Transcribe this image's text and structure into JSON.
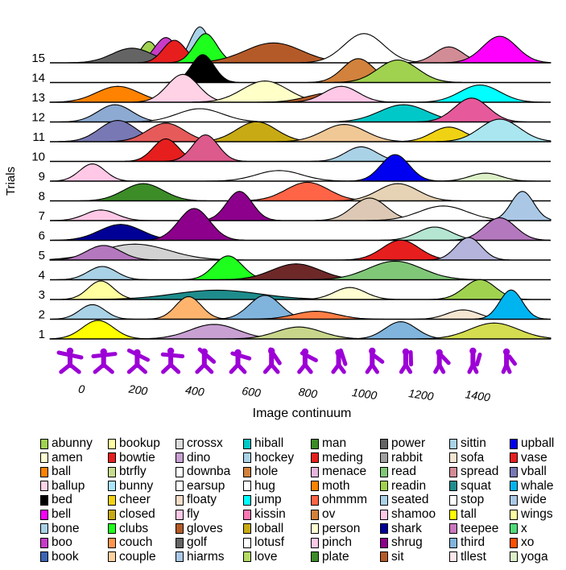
{
  "chart_data": {
    "type": "ridgeline",
    "ylabel": "Trials",
    "xlabel": "Image continuum",
    "xlim": [
      -110,
      1660
    ],
    "x_ticks": [
      0,
      200,
      400,
      600,
      800,
      1000,
      1200,
      1400
    ],
    "x_tick_labels": [
      "0",
      "200",
      "400",
      "600",
      "800",
      "1000",
      "1200",
      "1400"
    ],
    "rows": [
      "1",
      "2",
      "3",
      "4",
      "5",
      "6",
      "7",
      "8",
      "9",
      "10",
      "11",
      "12",
      "13",
      "14",
      "15"
    ],
    "ridges": [
      {
        "name": "tall",
        "color": "#ffff00",
        "row": 1,
        "x": 60,
        "height": 0.7,
        "width": 55
      },
      {
        "name": "dino",
        "color": "#c8a0d2",
        "row": 1,
        "x": 470,
        "height": 0.55,
        "width": 85
      },
      {
        "name": "love",
        "color": "#c8d68c",
        "row": 1,
        "x": 770,
        "height": 0.45,
        "width": 80
      },
      {
        "name": "seated",
        "color": "#80b4dc",
        "row": 1,
        "x": 1130,
        "height": 0.65,
        "width": 55
      },
      {
        "name": "sofa",
        "color": "#d4dc50",
        "row": 1,
        "x": 1460,
        "height": 0.6,
        "width": 85
      },
      {
        "name": "bone",
        "color": "#aad2e6",
        "row": 2,
        "x": 40,
        "height": 0.55,
        "width": 45
      },
      {
        "name": "couple",
        "color": "#ffb46e",
        "row": 2,
        "x": 380,
        "height": 0.85,
        "width": 45
      },
      {
        "name": "golf",
        "color": "#80b4dc",
        "row": 2,
        "x": 650,
        "height": 0.9,
        "width": 55
      },
      {
        "name": "moth",
        "color": "#ff7e45",
        "row": 2,
        "x": 830,
        "height": 0.3,
        "width": 75
      },
      {
        "name": "sofa",
        "color": "#f5e6d2",
        "row": 2,
        "x": 1350,
        "height": 0.35,
        "width": 55
      },
      {
        "name": "whale",
        "color": "#00b4f0",
        "row": 2,
        "x": 1520,
        "height": 1.1,
        "width": 40
      },
      {
        "name": "bookup",
        "color": "#ffffa0",
        "row": 3,
        "x": 70,
        "height": 0.7,
        "width": 45
      },
      {
        "name": "squat",
        "color": "#1e8c8c",
        "row": 3,
        "x": 480,
        "height": 0.35,
        "width": 150
      },
      {
        "name": "person",
        "color": "#ffffd2",
        "row": 3,
        "x": 950,
        "height": 0.45,
        "width": 55
      },
      {
        "name": "abunny",
        "color": "#a0d250",
        "row": 3,
        "x": 1410,
        "height": 0.75,
        "width": 55
      },
      {
        "name": "bunny",
        "color": "#aad2e6",
        "row": 4,
        "x": 75,
        "height": 0.5,
        "width": 50
      },
      {
        "name": "clubs",
        "color": "#1eff1e",
        "row": 4,
        "x": 520,
        "height": 0.9,
        "width": 50
      },
      {
        "name": "sit",
        "color": "#6e2828",
        "row": 4,
        "x": 760,
        "height": 0.6,
        "width": 85
      },
      {
        "name": "readin",
        "color": "#80c878",
        "row": 4,
        "x": 1110,
        "height": 0.7,
        "width": 95
      },
      {
        "name": "crossx",
        "color": "#d2d2d2",
        "row": 5,
        "x": 190,
        "height": 0.6,
        "width": 120
      },
      {
        "name": "boo",
        "color": "#b478be",
        "row": 5,
        "x": 80,
        "height": 0.55,
        "width": 60
      },
      {
        "name": "vase",
        "color": "#e61e1e",
        "row": 5,
        "x": 1130,
        "height": 0.75,
        "width": 65
      },
      {
        "name": "third",
        "color": "#b4b4dc",
        "row": 5,
        "x": 1370,
        "height": 0.85,
        "width": 45
      },
      {
        "name": "shark",
        "color": "#000096",
        "row": 6,
        "x": 140,
        "height": 0.6,
        "width": 75
      },
      {
        "name": "shrug",
        "color": "#8c008c",
        "row": 6,
        "x": 400,
        "height": 1.2,
        "width": 55
      },
      {
        "name": "seated",
        "color": "#b4e6d2",
        "row": 6,
        "x": 1250,
        "height": 0.5,
        "width": 60
      },
      {
        "name": "teepee",
        "color": "#b478be",
        "row": 6,
        "x": 1480,
        "height": 0.85,
        "width": 55
      },
      {
        "name": "ballup",
        "color": "#ffc8e6",
        "row": 7,
        "x": 70,
        "height": 0.4,
        "width": 55
      },
      {
        "name": "shrug",
        "color": "#8c008c",
        "row": 7,
        "x": 560,
        "height": 1.1,
        "width": 45
      },
      {
        "name": "floaty",
        "color": "#dcc8b4",
        "row": 7,
        "x": 1020,
        "height": 0.85,
        "width": 60
      },
      {
        "name": "stop",
        "color": "#ffffff",
        "row": 7,
        "x": 1280,
        "height": 0.55,
        "width": 85
      },
      {
        "name": "wide",
        "color": "#aac8e6",
        "row": 7,
        "x": 1560,
        "height": 1.1,
        "width": 40
      },
      {
        "name": "plate",
        "color": "#3c8c28",
        "row": 8,
        "x": 220,
        "height": 0.65,
        "width": 70
      },
      {
        "name": "ohmmm",
        "color": "#ff6446",
        "row": 8,
        "x": 800,
        "height": 0.7,
        "width": 75
      },
      {
        "name": "floaty",
        "color": "#e6d2b4",
        "row": 8,
        "x": 1120,
        "height": 0.65,
        "width": 70
      },
      {
        "name": "ballup",
        "color": "#ffc8e6",
        "row": 9,
        "x": 40,
        "height": 0.65,
        "width": 45
      },
      {
        "name": "downba",
        "color": "#ffffff",
        "row": 9,
        "x": 700,
        "height": 0.4,
        "width": 80
      },
      {
        "name": "upball",
        "color": "#0000f0",
        "row": 9,
        "x": 1110,
        "height": 1.0,
        "width": 50
      },
      {
        "name": "yoga",
        "color": "#dcf0c8",
        "row": 9,
        "x": 1430,
        "height": 0.3,
        "width": 55
      },
      {
        "name": "bowtie",
        "color": "#e61e1e",
        "row": 10,
        "x": 300,
        "height": 0.85,
        "width": 45
      },
      {
        "name": "spread",
        "color": "#dc5a8c",
        "row": 10,
        "x": 440,
        "height": 1.0,
        "width": 45
      },
      {
        "name": "readin",
        "color": "#aad2e6",
        "row": 10,
        "x": 990,
        "height": 0.55,
        "width": 55
      },
      {
        "name": "book",
        "color": "#7878b4",
        "row": 11,
        "x": 130,
        "height": 0.8,
        "width": 65
      },
      {
        "name": "spread",
        "color": "#e65a5a",
        "row": 11,
        "x": 300,
        "height": 0.7,
        "width": 65
      },
      {
        "name": "closed",
        "color": "#c8aa14",
        "row": 11,
        "x": 620,
        "height": 0.75,
        "width": 70
      },
      {
        "name": "couple",
        "color": "#f0c896",
        "row": 11,
        "x": 930,
        "height": 0.65,
        "width": 75
      },
      {
        "name": "vball",
        "color": "#f0d214",
        "row": 11,
        "x": 1300,
        "height": 0.55,
        "width": 60
      },
      {
        "name": "wings",
        "color": "#aae6f0",
        "row": 11,
        "x": 1480,
        "height": 0.85,
        "width": 70
      },
      {
        "name": "book",
        "color": "#8caad2",
        "row": 12,
        "x": 120,
        "height": 0.65,
        "width": 60
      },
      {
        "name": "hiball",
        "color": "#00c8c8",
        "row": 12,
        "x": 1140,
        "height": 0.65,
        "width": 85
      },
      {
        "name": "spread",
        "color": "#e65a9b",
        "row": 12,
        "x": 1380,
        "height": 0.9,
        "width": 60
      },
      {
        "name": "hug",
        "color": "#ffffff",
        "row": 12,
        "x": 420,
        "height": 0.5,
        "width": 80
      },
      {
        "name": "ball",
        "color": "#ff8200",
        "row": 13,
        "x": 130,
        "height": 0.6,
        "width": 75
      },
      {
        "name": "ballup",
        "color": "#ffd2e6",
        "row": 13,
        "x": 360,
        "height": 1.05,
        "width": 55
      },
      {
        "name": "cheer",
        "color": "#ffffc8",
        "row": 13,
        "x": 650,
        "height": 0.8,
        "width": 80
      },
      {
        "name": "man",
        "color": "#b45a28",
        "row": 13,
        "x": 880,
        "height": 0.35,
        "width": 80
      },
      {
        "name": "ballup",
        "color": "#ffc8e6",
        "row": 13,
        "x": 920,
        "height": 0.6,
        "width": 60
      },
      {
        "name": "hiball",
        "color": "#00ffff",
        "row": 13,
        "x": 1410,
        "height": 0.65,
        "width": 70
      },
      {
        "name": "bed",
        "color": "#000000",
        "row": 14,
        "x": 430,
        "height": 1.05,
        "width": 40
      },
      {
        "name": "hole",
        "color": "#d2823c",
        "row": 14,
        "x": 980,
        "height": 0.9,
        "width": 55
      },
      {
        "name": "readin",
        "color": "#a0d250",
        "row": 14,
        "x": 1120,
        "height": 0.85,
        "width": 70
      },
      {
        "name": "btrfly",
        "color": "#a0d250",
        "row": 15,
        "x": 240,
        "height": 0.8,
        "width": 30
      },
      {
        "name": "boo",
        "color": "#c83cc8",
        "row": 15,
        "x": 300,
        "height": 0.95,
        "width": 40
      },
      {
        "name": "bone",
        "color": "#aad2e6",
        "row": 15,
        "x": 420,
        "height": 1.35,
        "width": 35
      },
      {
        "name": "golf",
        "color": "#646464",
        "row": 15,
        "x": 180,
        "height": 0.55,
        "width": 70
      },
      {
        "name": "bowtie",
        "color": "#e61e1e",
        "row": 15,
        "x": 330,
        "height": 0.85,
        "width": 40
      },
      {
        "name": "clubs",
        "color": "#1eff1e",
        "row": 15,
        "x": 440,
        "height": 1.1,
        "width": 40
      },
      {
        "name": "sit",
        "color": "#b45a28",
        "row": 15,
        "x": 680,
        "height": 0.75,
        "width": 100
      },
      {
        "name": "stop",
        "color": "#ffffff",
        "row": 15,
        "x": 1000,
        "height": 1.1,
        "width": 70
      },
      {
        "name": "teepee",
        "color": "#d28c96",
        "row": 15,
        "x": 1300,
        "height": 0.6,
        "width": 50
      },
      {
        "name": "bell",
        "color": "#ff00ff",
        "row": 15,
        "x": 1480,
        "height": 1.0,
        "width": 60
      }
    ],
    "legend": [
      {
        "label": "abunny",
        "color": "#a0d250"
      },
      {
        "label": "amen",
        "color": "#ffffd2"
      },
      {
        "label": "ball",
        "color": "#ff8200"
      },
      {
        "label": "ballup",
        "color": "#ffd2e6"
      },
      {
        "label": "bed",
        "color": "#000000"
      },
      {
        "label": "bell",
        "color": "#ff00ff"
      },
      {
        "label": "bone",
        "color": "#aad2e6"
      },
      {
        "label": "boo",
        "color": "#c83cc8"
      },
      {
        "label": "book",
        "color": "#3c64b4"
      },
      {
        "label": "bookup",
        "color": "#ffffa0"
      },
      {
        "label": "bowtie",
        "color": "#e61e1e"
      },
      {
        "label": "btrfly",
        "color": "#c8dc8c"
      },
      {
        "label": "bunny",
        "color": "#aae6ff"
      },
      {
        "label": "cheer",
        "color": "#f0d214"
      },
      {
        "label": "closed",
        "color": "#c8aa14"
      },
      {
        "label": "clubs",
        "color": "#1eff1e"
      },
      {
        "label": "couch",
        "color": "#ff9650"
      },
      {
        "label": "couple",
        "color": "#ffd2a0"
      },
      {
        "label": "crossx",
        "color": "#dcdcdc"
      },
      {
        "label": "dino",
        "color": "#c8a0d2"
      },
      {
        "label": "downba",
        "color": "#ffffff"
      },
      {
        "label": "earsup",
        "color": "#ffffff"
      },
      {
        "label": "floaty",
        "color": "#f5dcc8"
      },
      {
        "label": "fly",
        "color": "#ffc8e6"
      },
      {
        "label": "gloves",
        "color": "#b45a28"
      },
      {
        "label": "golf",
        "color": "#646464"
      },
      {
        "label": "hiarms",
        "color": "#aac8e6"
      },
      {
        "label": "hiball",
        "color": "#00c8c8"
      },
      {
        "label": "hockey",
        "color": "#aad2e6"
      },
      {
        "label": "hole",
        "color": "#d2823c"
      },
      {
        "label": "hug",
        "color": "#ffffff"
      },
      {
        "label": "jump",
        "color": "#00ffff"
      },
      {
        "label": "kissin",
        "color": "#ff78b4"
      },
      {
        "label": "loball",
        "color": "#c8aa14"
      },
      {
        "label": "lotusf",
        "color": "#ffffff"
      },
      {
        "label": "love",
        "color": "#b4dc64"
      },
      {
        "label": "man",
        "color": "#3c8c28"
      },
      {
        "label": "meding",
        "color": "#e61e1e"
      },
      {
        "label": "menace",
        "color": "#e6b4dc"
      },
      {
        "label": "moth",
        "color": "#ff8200"
      },
      {
        "label": "ohmmm",
        "color": "#ff6446"
      },
      {
        "label": "ov",
        "color": "#d2823c"
      },
      {
        "label": "person",
        "color": "#ffffd2"
      },
      {
        "label": "pinch",
        "color": "#ffc8e6"
      },
      {
        "label": "plate",
        "color": "#3c8c28"
      },
      {
        "label": "power",
        "color": "#646464"
      },
      {
        "label": "rabbit",
        "color": "#a0a0a0"
      },
      {
        "label": "read",
        "color": "#80c878"
      },
      {
        "label": "readin",
        "color": "#a0d250"
      },
      {
        "label": "seated",
        "color": "#aad2e6"
      },
      {
        "label": "shamoo",
        "color": "#ffc8e6"
      },
      {
        "label": "shark",
        "color": "#000096"
      },
      {
        "label": "shrug",
        "color": "#8c008c"
      },
      {
        "label": "sit",
        "color": "#b45a28"
      },
      {
        "label": "sittin",
        "color": "#aad2e6"
      },
      {
        "label": "sofa",
        "color": "#f5e6d2"
      },
      {
        "label": "spread",
        "color": "#d28c96"
      },
      {
        "label": "squat",
        "color": "#1e8c8c"
      },
      {
        "label": "stop",
        "color": "#ffffff"
      },
      {
        "label": "tall",
        "color": "#ffff00"
      },
      {
        "label": "teepee",
        "color": "#c878be"
      },
      {
        "label": "third",
        "color": "#80b4dc"
      },
      {
        "label": "tllest",
        "color": "#ffe6ea"
      },
      {
        "label": "upball",
        "color": "#0000f0"
      },
      {
        "label": "vase",
        "color": "#e61e1e"
      },
      {
        "label": "vball",
        "color": "#7878b4"
      },
      {
        "label": "whale",
        "color": "#00b4f0"
      },
      {
        "label": "wide",
        "color": "#aac8e6"
      },
      {
        "label": "wings",
        "color": "#ffffa0"
      },
      {
        "label": "x",
        "color": "#50dc78"
      },
      {
        "label": "xo",
        "color": "#ff5000"
      },
      {
        "label": "yoga",
        "color": "#dcf0c8"
      }
    ],
    "stimulus_icon_color": "#9c00d6"
  }
}
